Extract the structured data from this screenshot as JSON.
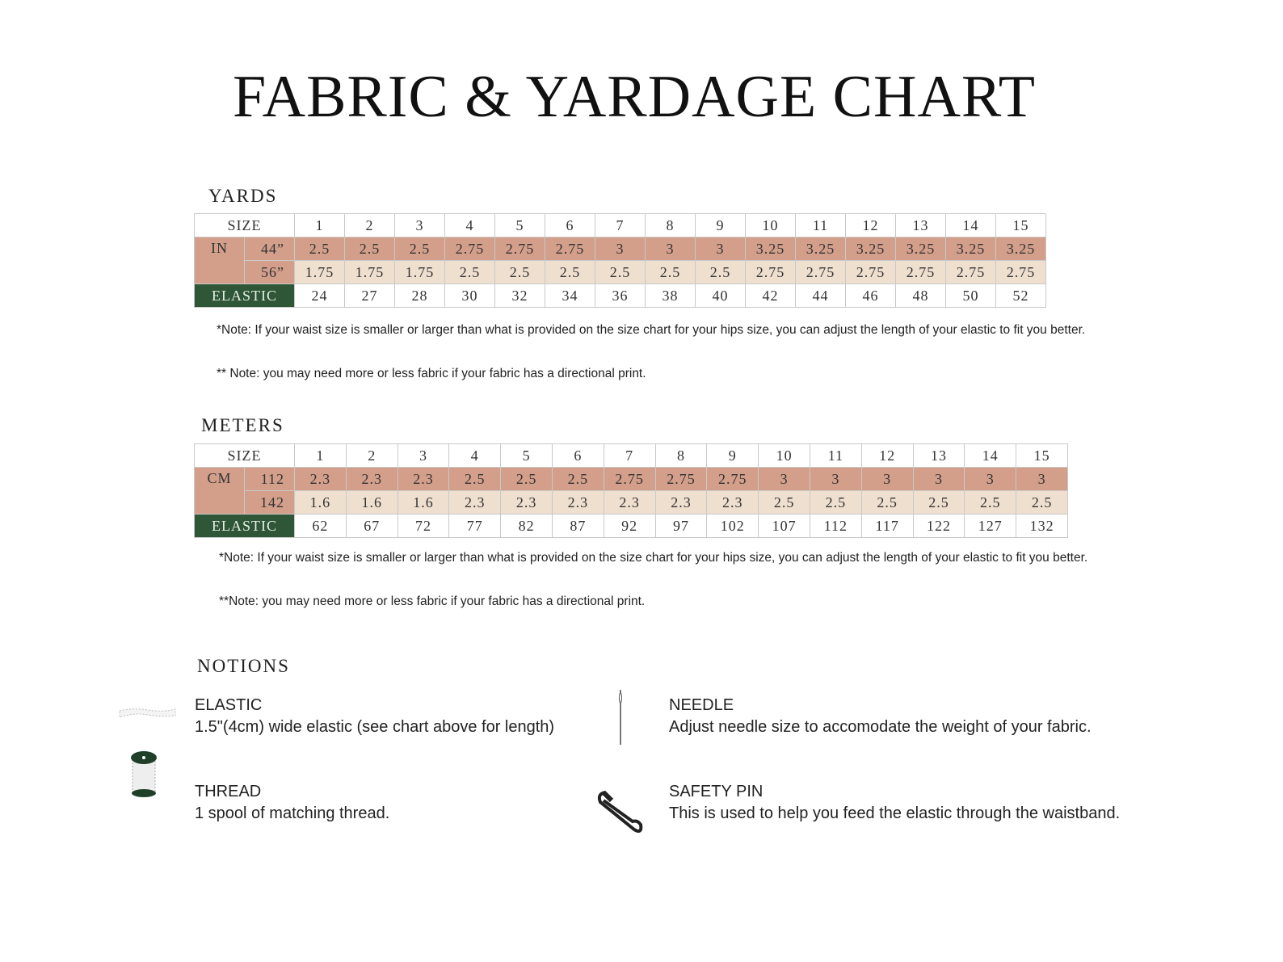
{
  "title": "FABRIC & YARDAGE CHART",
  "yards": {
    "heading": "YARDS",
    "size_label": "SIZE",
    "unit_label": "IN",
    "elastic_label": "ELASTIC",
    "sizes": [
      "1",
      "2",
      "3",
      "4",
      "5",
      "6",
      "7",
      "8",
      "9",
      "10",
      "11",
      "12",
      "13",
      "14",
      "15"
    ],
    "rows": [
      {
        "width": "44”",
        "values": [
          "2.5",
          "2.5",
          "2.5",
          "2.75",
          "2.75",
          "2.75",
          "3",
          "3",
          "3",
          "3.25",
          "3.25",
          "3.25",
          "3.25",
          "3.25",
          "3.25"
        ]
      },
      {
        "width": "56”",
        "values": [
          "1.75",
          "1.75",
          "1.75",
          "2.5",
          "2.5",
          "2.5",
          "2.5",
          "2.5",
          "2.5",
          "2.75",
          "2.75",
          "2.75",
          "2.75",
          "2.75",
          "2.75"
        ]
      }
    ],
    "elastic": [
      "24",
      "27",
      "28",
      "30",
      "32",
      "34",
      "36",
      "38",
      "40",
      "42",
      "44",
      "46",
      "48",
      "50",
      "52"
    ],
    "note1": "*Note: If your waist size is smaller or larger than what is provided on the size chart for your hips size, you can adjust the length of your elastic to fit you better.",
    "note2": "** Note: you may need more or less fabric if your fabric has a directional print."
  },
  "meters": {
    "heading": "METERS",
    "size_label": "SIZE",
    "unit_label": "CM",
    "elastic_label": "ELASTIC",
    "sizes": [
      "1",
      "2",
      "3",
      "4",
      "5",
      "6",
      "7",
      "8",
      "9",
      "10",
      "11",
      "12",
      "13",
      "14",
      "15"
    ],
    "rows": [
      {
        "width": "112",
        "values": [
          "2.3",
          "2.3",
          "2.3",
          "2.5",
          "2.5",
          "2.5",
          "2.75",
          "2.75",
          "2.75",
          "3",
          "3",
          "3",
          "3",
          "3",
          "3"
        ]
      },
      {
        "width": "142",
        "values": [
          "1.6",
          "1.6",
          "1.6",
          "2.3",
          "2.3",
          "2.3",
          "2.3",
          "2.3",
          "2.3",
          "2.5",
          "2.5",
          "2.5",
          "2.5",
          "2.5",
          "2.5"
        ]
      }
    ],
    "elastic": [
      "62",
      "67",
      "72",
      "77",
      "82",
      "87",
      "92",
      "97",
      "102",
      "107",
      "112",
      "117",
      "122",
      "127",
      "132"
    ],
    "note1": "*Note: If your waist size is smaller or larger than what is provided on the size chart for your hips size, you can adjust the length of your elastic to fit you better.",
    "note2": "**Note: you may need more or less fabric if your fabric has a directional print."
  },
  "notions": {
    "heading": "NOTIONS",
    "items": [
      {
        "name": "ELASTIC",
        "desc": "1.5\"(4cm) wide elastic (see chart above for length)",
        "icon": "elastic-band-icon"
      },
      {
        "name": "NEEDLE",
        "desc": "Adjust needle size to accomodate the weight of your fabric.",
        "icon": "needle-icon"
      },
      {
        "name": "THREAD",
        "desc": "1 spool of matching thread.",
        "icon": "thread-spool-icon"
      },
      {
        "name": "SAFETY PIN",
        "desc": "This is used to help you feed the elastic through the waistband.",
        "icon": "safety-pin-icon"
      }
    ]
  },
  "colors": {
    "row_dark": "#d39e8a",
    "row_light": "#efdfcf",
    "elastic": "#2e5637"
  }
}
